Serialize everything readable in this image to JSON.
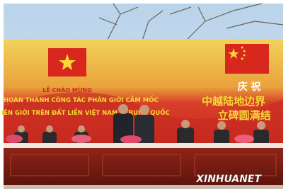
{
  "banner": {
    "left": {
      "lines": [
        "LỄ CHÀO MỪNG",
        "HOÀN THÀNH CÔNG TÁC PHÂN GIỚI CẮM MỐC",
        "IÊN GIỚI TRÊN ĐẤT LIỀN VIỆT NAM - TRUNG QUỐC"
      ]
    },
    "right": {
      "lines": [
        "庆 祝",
        "中越陆地边界",
        "立碑圆满结"
      ]
    }
  },
  "watermark": "XINHUANET"
}
